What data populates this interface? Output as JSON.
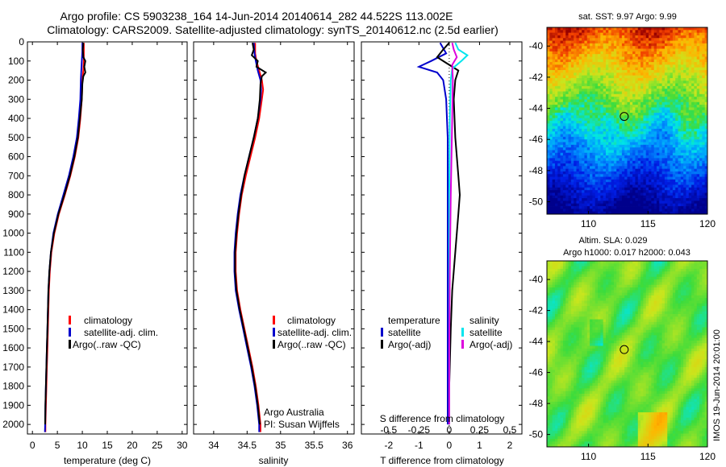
{
  "header": {
    "line1": "Argo profile: CS 5903238_164 14-Jun-2014 20140614_282 44.522S 113.002E",
    "line2": "Climatology: CARS2009. Satellite-adjusted climatology: synTS_20140612.nc (2.5d earlier)"
  },
  "colors": {
    "climatology": "#ff0000",
    "satellite": "#0000cc",
    "argo": "#000000",
    "sat_salinity": "#00e5ee",
    "argo_salinity": "#dd00dd"
  },
  "chart_data": [
    {
      "type": "line",
      "id": "temperature",
      "xlabel": "temperature (deg C)",
      "xlim": [
        -1,
        31
      ],
      "ylim": [
        2050,
        0
      ],
      "xticks": [
        0,
        5,
        10,
        15,
        20,
        25,
        30
      ],
      "yticks": [
        0,
        100,
        200,
        300,
        400,
        500,
        600,
        700,
        800,
        900,
        1000,
        1100,
        1200,
        1300,
        1400,
        1500,
        1600,
        1700,
        1800,
        1900,
        2000
      ],
      "legend": [
        "climatology",
        "satellite-adj. clim.",
        "Argo(..raw -QC)"
      ],
      "series": [
        {
          "name": "climatology",
          "color": "#ff0000",
          "points": [
            [
              10.3,
              5
            ],
            [
              10.3,
              50
            ],
            [
              10.3,
              100
            ],
            [
              10.2,
              150
            ],
            [
              10,
              200
            ],
            [
              9.9,
              300
            ],
            [
              9.6,
              400
            ],
            [
              9.2,
              500
            ],
            [
              8.5,
              600
            ],
            [
              7.6,
              700
            ],
            [
              6.5,
              800
            ],
            [
              5.3,
              900
            ],
            [
              4.4,
              1000
            ],
            [
              3.8,
              1100
            ],
            [
              3.5,
              1200
            ],
            [
              3.3,
              1300
            ],
            [
              3.2,
              1400
            ],
            [
              3.1,
              1500
            ],
            [
              3,
              1600
            ],
            [
              2.9,
              1700
            ],
            [
              2.8,
              1800
            ],
            [
              2.7,
              1900
            ],
            [
              2.6,
              2000
            ],
            [
              2.6,
              2040
            ]
          ]
        },
        {
          "name": "satellite-adj. clim.",
          "color": "#0000cc",
          "points": [
            [
              10,
              5
            ],
            [
              10,
              50
            ],
            [
              9.9,
              100
            ],
            [
              9.8,
              150
            ],
            [
              9.7,
              200
            ],
            [
              9.6,
              300
            ],
            [
              9.3,
              400
            ],
            [
              8.9,
              500
            ],
            [
              8.2,
              600
            ],
            [
              7.3,
              700
            ],
            [
              6.2,
              800
            ],
            [
              5.1,
              900
            ],
            [
              4.2,
              1000
            ],
            [
              3.7,
              1100
            ],
            [
              3.4,
              1200
            ],
            [
              3.2,
              1300
            ],
            [
              3.1,
              1400
            ],
            [
              3,
              1500
            ],
            [
              2.9,
              1600
            ],
            [
              2.8,
              1700
            ],
            [
              2.7,
              1800
            ],
            [
              2.6,
              1900
            ],
            [
              2.55,
              2000
            ],
            [
              2.5,
              2040
            ]
          ]
        },
        {
          "name": "Argo(..raw -QC)",
          "color": "#000000",
          "points": [
            [
              10.2,
              5
            ],
            [
              10.1,
              40
            ],
            [
              10.2,
              80
            ],
            [
              10.6,
              100
            ],
            [
              10.4,
              130
            ],
            [
              10.6,
              160
            ],
            [
              10.2,
              180
            ],
            [
              10,
              220
            ],
            [
              9.9,
              300
            ],
            [
              9.5,
              400
            ],
            [
              9.1,
              500
            ],
            [
              8.4,
              600
            ],
            [
              7.5,
              700
            ],
            [
              6.4,
              800
            ],
            [
              5.2,
              900
            ],
            [
              4.3,
              1000
            ],
            [
              3.7,
              1100
            ],
            [
              3.4,
              1200
            ],
            [
              3.2,
              1300
            ],
            [
              3.1,
              1400
            ],
            [
              3,
              1500
            ],
            [
              2.9,
              1600
            ],
            [
              2.8,
              1700
            ],
            [
              2.7,
              1800
            ],
            [
              2.6,
              1900
            ],
            [
              2.55,
              2000
            ]
          ]
        }
      ]
    },
    {
      "type": "line",
      "id": "salinity",
      "xlabel": "salinity",
      "xlim": [
        33.7,
        36.1
      ],
      "ylim": [
        2050,
        0
      ],
      "xticks": [
        34,
        34.5,
        35,
        35.5,
        36
      ],
      "legend": [
        "climatology",
        "satellite-adj. clim.",
        "Argo(..raw -QC)"
      ],
      "annotation": [
        "Argo Australia",
        "PI: Susan Wijffels"
      ],
      "series": [
        {
          "name": "climatology",
          "color": "#ff0000",
          "points": [
            [
              34.62,
              5
            ],
            [
              34.62,
              60
            ],
            [
              34.64,
              100
            ],
            [
              34.68,
              150
            ],
            [
              34.72,
              200
            ],
            [
              34.74,
              250
            ],
            [
              34.72,
              300
            ],
            [
              34.68,
              400
            ],
            [
              34.62,
              500
            ],
            [
              34.55,
              600
            ],
            [
              34.48,
              700
            ],
            [
              34.42,
              800
            ],
            [
              34.38,
              900
            ],
            [
              34.35,
              1000
            ],
            [
              34.33,
              1100
            ],
            [
              34.33,
              1200
            ],
            [
              34.35,
              1300
            ],
            [
              34.4,
              1400
            ],
            [
              34.46,
              1500
            ],
            [
              34.52,
              1600
            ],
            [
              34.58,
              1700
            ],
            [
              34.63,
              1800
            ],
            [
              34.67,
              1900
            ],
            [
              34.7,
              2000
            ],
            [
              34.7,
              2040
            ]
          ]
        },
        {
          "name": "satellite-adj. clim.",
          "color": "#0000cc",
          "points": [
            [
              34.6,
              5
            ],
            [
              34.61,
              60
            ],
            [
              34.63,
              100
            ],
            [
              34.66,
              150
            ],
            [
              34.7,
              200
            ],
            [
              34.71,
              250
            ],
            [
              34.7,
              300
            ],
            [
              34.66,
              400
            ],
            [
              34.6,
              500
            ],
            [
              34.53,
              600
            ],
            [
              34.46,
              700
            ],
            [
              34.4,
              800
            ],
            [
              34.36,
              900
            ],
            [
              34.33,
              1000
            ],
            [
              34.31,
              1100
            ],
            [
              34.31,
              1200
            ],
            [
              34.33,
              1300
            ],
            [
              34.38,
              1400
            ],
            [
              34.44,
              1500
            ],
            [
              34.5,
              1600
            ],
            [
              34.56,
              1700
            ],
            [
              34.61,
              1800
            ],
            [
              34.65,
              1900
            ],
            [
              34.68,
              2000
            ],
            [
              34.68,
              2040
            ]
          ]
        },
        {
          "name": "Argo(..raw -QC)",
          "color": "#000000",
          "points": [
            [
              34.58,
              5
            ],
            [
              34.6,
              40
            ],
            [
              34.57,
              70
            ],
            [
              34.66,
              100
            ],
            [
              34.64,
              130
            ],
            [
              34.78,
              160
            ],
            [
              34.72,
              180
            ],
            [
              34.7,
              220
            ],
            [
              34.69,
              300
            ],
            [
              34.66,
              400
            ],
            [
              34.6,
              500
            ],
            [
              34.53,
              600
            ],
            [
              34.46,
              700
            ],
            [
              34.41,
              800
            ],
            [
              34.37,
              900
            ],
            [
              34.34,
              1000
            ],
            [
              34.32,
              1100
            ],
            [
              34.32,
              1200
            ],
            [
              34.34,
              1300
            ],
            [
              34.39,
              1400
            ],
            [
              34.45,
              1500
            ],
            [
              34.51,
              1600
            ],
            [
              34.57,
              1700
            ],
            [
              34.62,
              1800
            ],
            [
              34.66,
              1900
            ],
            [
              34.69,
              2000
            ]
          ]
        }
      ]
    },
    {
      "type": "line",
      "id": "difference",
      "xlabel": "T difference from climatology",
      "xlabel2": "S difference from climatology",
      "xlim": [
        -2.9,
        2.4
      ],
      "ylim": [
        2050,
        0
      ],
      "xticks_T": [
        -2,
        -1,
        0,
        1,
        2
      ],
      "xticks_S_labels": [
        "-0.5",
        "-0.25",
        "0",
        "0.25",
        "0.5"
      ],
      "legend_temperature_title": "temperature",
      "legend_salinity_title": "salinity",
      "legend_temperature": [
        "satellite",
        "Argo(-adj)"
      ],
      "legend_salinity": [
        "satellite",
        "Argo(-adj)"
      ],
      "series": [
        {
          "name": "satellite",
          "color": "#0000cc",
          "points": [
            [
              -0.3,
              5
            ],
            [
              -0.1,
              60
            ],
            [
              -0.6,
              100
            ],
            [
              -1,
              130
            ],
            [
              -0.4,
              160
            ],
            [
              -0.2,
              200
            ],
            [
              -0.1,
              300
            ],
            [
              -0.05,
              500
            ],
            [
              -0.05,
              800
            ],
            [
              -0.05,
              1000
            ],
            [
              -0.05,
              1200
            ],
            [
              -0.05,
              1500
            ],
            [
              -0.05,
              1800
            ],
            [
              -0.05,
              2000
            ]
          ]
        },
        {
          "name": "Argo(-adj)",
          "color": "#000000",
          "points": [
            [
              0,
              5
            ],
            [
              -0.2,
              40
            ],
            [
              -0.4,
              80
            ],
            [
              -0.1,
              110
            ],
            [
              0.3,
              150
            ],
            [
              0.2,
              200
            ],
            [
              0.15,
              300
            ],
            [
              0.2,
              500
            ],
            [
              0.25,
              600
            ],
            [
              0.3,
              700
            ],
            [
              0.35,
              800
            ],
            [
              0.3,
              900
            ],
            [
              0.25,
              1000
            ],
            [
              0.2,
              1100
            ],
            [
              0.15,
              1200
            ],
            [
              0.1,
              1300
            ],
            [
              0.05,
              1500
            ],
            [
              0,
              1800
            ],
            [
              0,
              2000
            ]
          ]
        },
        {
          "name": "satellite",
          "color": "#00e5ee",
          "points": [
            [
              0.2,
              5
            ],
            [
              0.3,
              40
            ],
            [
              0.6,
              70
            ],
            [
              0.4,
              100
            ],
            [
              0.1,
              140
            ],
            [
              0.05,
              200
            ],
            [
              0.02,
              400
            ],
            [
              0,
              800
            ],
            [
              0,
              1200
            ],
            [
              0,
              1600
            ],
            [
              0,
              2000
            ]
          ]
        },
        {
          "name": "Argo(-adj)",
          "color": "#dd00dd",
          "points": [
            [
              0.1,
              5
            ],
            [
              0.15,
              40
            ],
            [
              0.25,
              80
            ],
            [
              0.1,
              120
            ],
            [
              0.12,
              200
            ],
            [
              0.1,
              400
            ],
            [
              0.05,
              800
            ],
            [
              0.02,
              1200
            ],
            [
              0,
              1600
            ],
            [
              0,
              2000
            ]
          ]
        }
      ]
    },
    {
      "type": "heatmap",
      "id": "sst_map",
      "title": "sat. SST: 9.97 Argo: 9.99",
      "xlim": [
        106.5,
        120
      ],
      "ylim": [
        -50.8,
        -38.8
      ],
      "xticks": [
        110,
        115,
        120
      ],
      "yticks": [
        -40,
        -42,
        -44,
        -46,
        -48,
        -50
      ],
      "argo_position": [
        113.002,
        -44.522
      ]
    },
    {
      "type": "heatmap",
      "id": "sla_map",
      "title1": "Altim. SLA: 0.029",
      "title2": "Argo h1000: 0.017 h2000: 0.043",
      "side_label": "IMOS 19-Jun-2014 20:01:00",
      "xlim": [
        106.5,
        120
      ],
      "ylim": [
        -50.8,
        -38.8
      ],
      "xticks": [
        110,
        115,
        120
      ],
      "yticks": [
        -40,
        -42,
        -44,
        -46,
        -48,
        -50
      ],
      "argo_position": [
        113.002,
        -44.522
      ]
    }
  ]
}
